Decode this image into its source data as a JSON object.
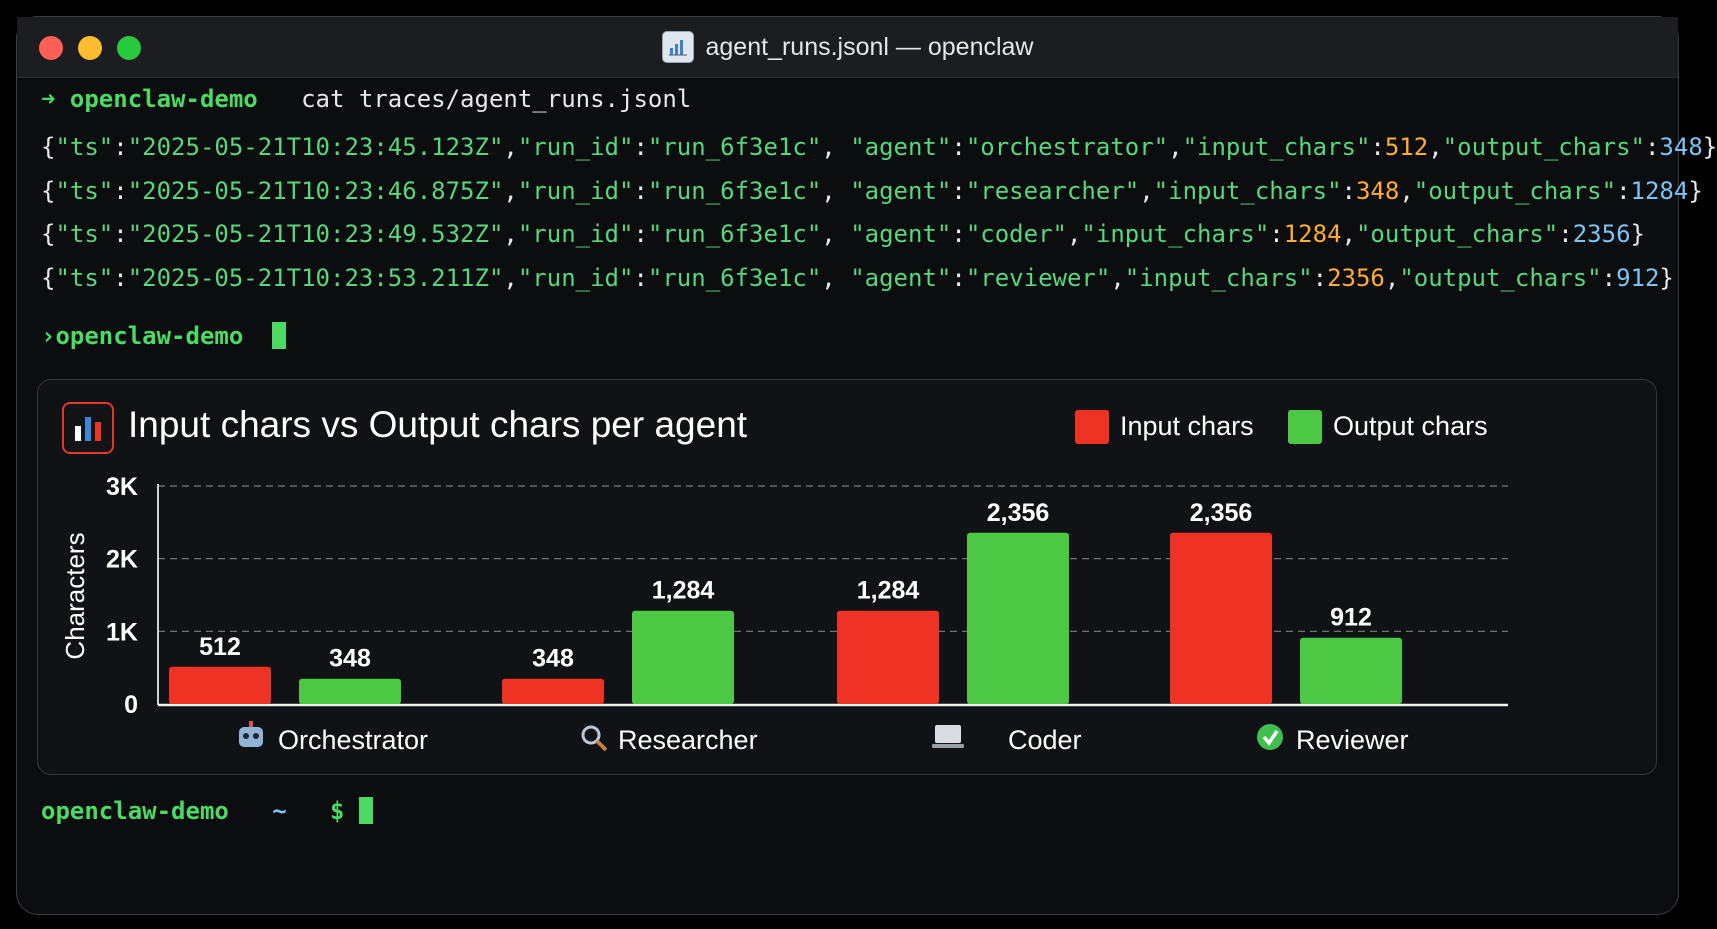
{
  "window": {
    "title": "agent_runs.jsonl — openclaw"
  },
  "terminal": {
    "prompt1": {
      "arrow": "➜",
      "dir": "openclaw-demo",
      "command": "cat traces/agent_runs.jsonl"
    },
    "records": [
      {
        "ts": "2025-05-21T10:23:45.123Z",
        "run_id": "run_6f3e1c",
        "agent": "orchestrator",
        "input_chars": "512",
        "output_chars": "348"
      },
      {
        "ts": "2025-05-21T10:23:46.875Z",
        "run_id": "run_6f3e1c",
        "agent": "researcher",
        "input_chars": "348",
        "output_chars": "1284"
      },
      {
        "ts": "2025-05-21T10:23:49.532Z",
        "run_id": "run_6f3e1c",
        "agent": "coder",
        "input_chars": "1284",
        "output_chars": "2356"
      },
      {
        "ts": "2025-05-21T10:23:53.211Z",
        "run_id": "run_6f3e1c",
        "agent": "reviewer",
        "input_chars": "2356",
        "output_chars": "912"
      }
    ],
    "prompt2": {
      "text": "›openclaw-demo"
    },
    "prompt3": {
      "dir": "openclaw-demo",
      "tilde": "~",
      "dollar": "$"
    }
  },
  "colors": {
    "input": "#ee3324",
    "output": "#4cc845",
    "grid": "#7a7d80",
    "prompt": "#4cd964",
    "string": "#58d67c",
    "input_number": "#ffad33",
    "output_number": "#7cc4f5"
  },
  "icons": {
    "window": "bar-chart-icon",
    "chart": "bar-chart-icon",
    "orchestrator": "robot-icon",
    "researcher": "magnifier-icon",
    "coder": "laptop-code-icon",
    "reviewer": "check-mark-icon"
  },
  "chart_data": {
    "type": "bar",
    "title": "Input chars vs Output chars per agent",
    "ylabel": "Characters",
    "xlabel": "",
    "categories": [
      "Orchestrator",
      "Researcher",
      "Coder",
      "Reviewer"
    ],
    "series": [
      {
        "name": "Input chars",
        "values": [
          512,
          348,
          1284,
          2356
        ],
        "labels": [
          "512",
          "348",
          "1,284",
          "2,356"
        ]
      },
      {
        "name": "Output chars",
        "values": [
          348,
          1284,
          2356,
          912
        ],
        "labels": [
          "348",
          "1,284",
          "2,356",
          "912"
        ]
      }
    ],
    "ylim": [
      0,
      3000
    ],
    "yticks": [
      0,
      1000,
      2000,
      3000
    ],
    "ytick_labels": [
      "0",
      "1K",
      "2K",
      "3K"
    ],
    "grid": "dashed horizontal",
    "legend": "top-right"
  }
}
